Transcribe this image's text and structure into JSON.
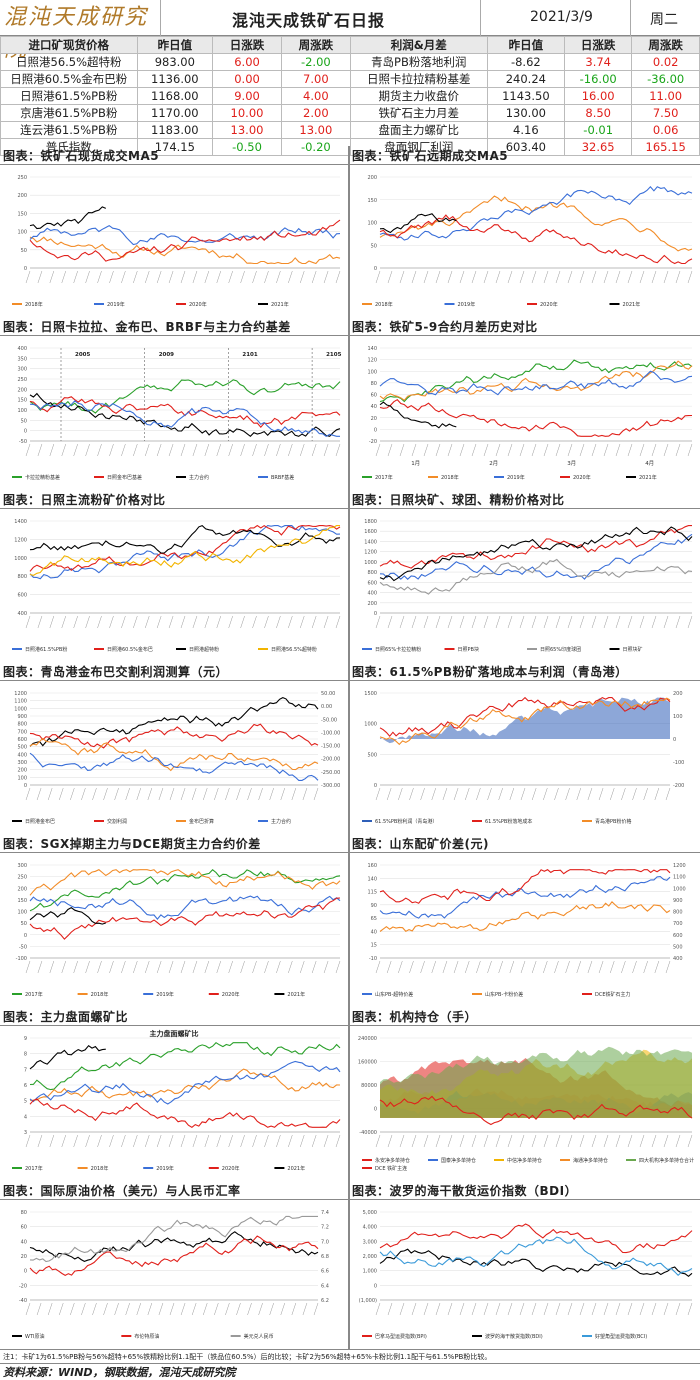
{
  "header": {
    "logo": "混沌天成研究院",
    "title": "混沌天成铁矿石日报",
    "date": "2021/3/9",
    "weekday": "周二"
  },
  "table": {
    "headers": [
      "进口矿现货价格",
      "昨日值",
      "日涨跌",
      "周涨跌",
      "利润&月差",
      "昨日值",
      "日涨跌",
      "周涨跌"
    ],
    "rows": [
      [
        "日照港56.5%超特粉",
        "983.00",
        "6.00",
        "-2.00",
        "青岛PB粉落地利润",
        "-8.62",
        "3.74",
        "0.02"
      ],
      [
        "日照港60.5%金布巴粉",
        "1136.00",
        "0.00",
        "7.00",
        "日照卡拉拉精粉基差",
        "240.24",
        "-16.00",
        "-36.00"
      ],
      [
        "日照港61.5%PB粉",
        "1168.00",
        "9.00",
        "4.00",
        "期货主力收盘价",
        "1143.50",
        "16.00",
        "11.00"
      ],
      [
        "京唐港61.5%PB粉",
        "1170.00",
        "10.00",
        "2.00",
        "铁矿石主力月差",
        "130.00",
        "8.50",
        "7.50"
      ],
      [
        "连云港61.5%PB粉",
        "1183.00",
        "13.00",
        "13.00",
        "盘面主力螺矿比",
        "4.16",
        "-0.01",
        "0.06"
      ],
      [
        "普氏指数",
        "174.15",
        "-0.50",
        "-0.20",
        "盘面钢厂利润",
        "603.40",
        "32.65",
        "165.15"
      ]
    ]
  },
  "sections": [
    "图表：铁矿石现货成交MA5",
    "图表：铁矿石远期成交MA5",
    "图表：日照卡拉拉、金布巴、BRBF与主力合约基差",
    "图表：铁矿5-9合约月差历史对比",
    "图表：日照主流粉矿价格对比",
    "图表：日照块矿、球团、精粉价格对比",
    "图表：青岛港金布巴交割利润测算（元）",
    "图表：61.5%PB粉矿落地成本与利润（青岛港）",
    "图表：SGX掉期主力与DCE期货主力合约价差",
    "图表：山东配矿价差(元)",
    "图表：主力盘面螺矿比",
    "图表：机构持仓（手）",
    "图表：国际原油价格（美元）与人民币汇率",
    "图表：波罗的海干散货运价指数（BDI）"
  ],
  "charts": [
    {
      "type": "line",
      "ylim": [
        0,
        250
      ],
      "yticks": [
        "0",
        "50",
        "100",
        "150",
        "200",
        "250"
      ],
      "series": [
        {
          "name": "2018年",
          "color": "#f28c28"
        },
        {
          "name": "2019年",
          "color": "#3a6fd8"
        },
        {
          "name": "2020年",
          "color": "#e0201b"
        },
        {
          "name": "2021年",
          "color": "#000000"
        }
      ]
    },
    {
      "type": "line",
      "ylim": [
        0,
        200
      ],
      "yticks": [
        "0",
        "50",
        "100",
        "150",
        "200"
      ],
      "series": [
        {
          "name": "2018年",
          "color": "#f28c28"
        },
        {
          "name": "2019年",
          "color": "#3a6fd8"
        },
        {
          "name": "2020年",
          "color": "#e0201b"
        },
        {
          "name": "2021年",
          "color": "#000000"
        }
      ]
    },
    {
      "type": "line",
      "ylim": [
        -50,
        400
      ],
      "yticks": [
        "-50",
        "0",
        "50",
        "100",
        "150",
        "200",
        "250",
        "300",
        "350",
        "400"
      ],
      "annotations": [
        "2005",
        "2009",
        "2101",
        "2105"
      ],
      "series": [
        {
          "name": "卡拉拉精粉基差",
          "color": "#2aa02a"
        },
        {
          "name": "日照金布巴基差",
          "color": "#e0201b"
        },
        {
          "name": "主力合约",
          "color": "#000000"
        },
        {
          "name": "BRBF基差",
          "color": "#3a6fd8"
        }
      ]
    },
    {
      "type": "line",
      "ylim": [
        -20,
        140
      ],
      "yticks": [
        "-20",
        "0",
        "20",
        "40",
        "60",
        "80",
        "100",
        "120",
        "140"
      ],
      "months": [
        "1月",
        "2月",
        "3月",
        "4月"
      ],
      "series": [
        {
          "name": "2017年",
          "color": "#2aa02a"
        },
        {
          "name": "2018年",
          "color": "#f28c28"
        },
        {
          "name": "2019年",
          "color": "#3a6fd8"
        },
        {
          "name": "2020年",
          "color": "#e0201b"
        },
        {
          "name": "2021年",
          "color": "#000000"
        }
      ]
    },
    {
      "type": "line",
      "ylim": [
        400,
        1400
      ],
      "yticks": [
        "400",
        "600",
        "800",
        "1000",
        "1200",
        "1400"
      ],
      "series": [
        {
          "name": "日照港61.5%PB粉",
          "color": "#3a6fd8"
        },
        {
          "name": "日照港60.5%金布巴",
          "color": "#e0201b"
        },
        {
          "name": "日照港超特粉",
          "color": "#000000"
        },
        {
          "name": "日照港56.5%超特粉",
          "color": "#f2b400"
        }
      ]
    },
    {
      "type": "line",
      "ylim": [
        0,
        1800
      ],
      "yticks": [
        "0",
        "200",
        "400",
        "600",
        "800",
        "1000",
        "1200",
        "1400",
        "1600",
        "1800"
      ],
      "series": [
        {
          "name": "日照65%卡拉拉精粉",
          "color": "#3a6fd8"
        },
        {
          "name": "日照PB块",
          "color": "#e0201b"
        },
        {
          "name": "日照65%印度球团",
          "color": "#999999"
        },
        {
          "name": "日照块矿",
          "color": "#000000"
        }
      ]
    },
    {
      "type": "line",
      "ylim": [
        0,
        1200
      ],
      "yticks": [
        "0",
        "100",
        "200",
        "300",
        "400",
        "500",
        "600",
        "700",
        "800",
        "900",
        "1000",
        "1100",
        "1200"
      ],
      "y2ticks": [
        "50.00",
        "0.00",
        "-50.00",
        "-100.00",
        "-150.00",
        "-200.00",
        "-250.00",
        "-300.00"
      ],
      "series": [
        {
          "name": "日照港金布巴",
          "color": "#000000"
        },
        {
          "name": "交割利润",
          "color": "#e0201b"
        },
        {
          "name": "金布巴折算",
          "color": "#f28c28"
        },
        {
          "name": "主力合约",
          "color": "#3a6fd8"
        }
      ]
    },
    {
      "type": "area",
      "ylim": [
        0,
        1600
      ],
      "yticks": [
        "0",
        "500",
        "1000",
        "1500"
      ],
      "y2ticks": [
        "200",
        "100",
        "0",
        "-100",
        "-200"
      ],
      "series": [
        {
          "name": "61.5%PB粉利润（青岛港）",
          "color": "#2f5fb8"
        },
        {
          "name": "61.5%PB粉落地成本",
          "color": "#e0201b"
        },
        {
          "name": "青岛港PB粉价格",
          "color": "#f28c28"
        }
      ]
    },
    {
      "type": "line",
      "ylim": [
        -100,
        300
      ],
      "yticks": [
        "-100",
        "-50",
        "0",
        "50",
        "100",
        "150",
        "200",
        "250",
        "300"
      ],
      "series": [
        {
          "name": "2017年",
          "color": "#2aa02a"
        },
        {
          "name": "2018年",
          "color": "#f28c28"
        },
        {
          "name": "2019年",
          "color": "#3a6fd8"
        },
        {
          "name": "2020年",
          "color": "#e0201b"
        },
        {
          "name": "2021年",
          "color": "#000000"
        }
      ]
    },
    {
      "type": "line",
      "ylim": [
        -10,
        160
      ],
      "yticks": [
        "-10",
        "15",
        "40",
        "65",
        "90",
        "115",
        "140",
        "160"
      ],
      "y2ticks": [
        "1200",
        "1100",
        "1000",
        "900",
        "800",
        "700",
        "600",
        "500",
        "400"
      ],
      "series": [
        {
          "name": "山东PB-超特价差",
          "color": "#3a6fd8"
        },
        {
          "name": "山东PB-卡粉价差",
          "color": "#f28c28"
        },
        {
          "name": "DCE铁矿石主力",
          "color": "#e0201b"
        }
      ]
    },
    {
      "type": "line",
      "title": "主力盘面螺矿比",
      "ylim": [
        3,
        9
      ],
      "yticks": [
        "3",
        "4",
        "5",
        "6",
        "7",
        "8",
        "9"
      ],
      "series": [
        {
          "name": "2017年",
          "color": "#2aa02a"
        },
        {
          "name": "2018年",
          "color": "#f28c28"
        },
        {
          "name": "2019年",
          "color": "#3a6fd8"
        },
        {
          "name": "2020年",
          "color": "#e0201b"
        },
        {
          "name": "2021年",
          "color": "#000000"
        }
      ]
    },
    {
      "type": "area",
      "ylim": [
        -40000,
        240000
      ],
      "yticks": [
        "-40000",
        "0",
        "80000",
        "160000",
        "240000"
      ],
      "series": [
        {
          "name": "永安净多单持仓",
          "color": "#e0201b"
        },
        {
          "name": "国泰净多单持仓",
          "color": "#3a6fd8"
        },
        {
          "name": "中信净多单持仓",
          "color": "#f2b400"
        },
        {
          "name": "海通净多单持仓",
          "color": "#f28c28"
        },
        {
          "name": "四大机构净多单持仓合计",
          "color": "#6aa84f"
        },
        {
          "name": "DCE 铁矿主连",
          "color": "#e0201b"
        }
      ]
    },
    {
      "type": "line",
      "ylim": [
        -40,
        80
      ],
      "yticks": [
        "-40",
        "-20",
        "0",
        "20",
        "40",
        "60",
        "80"
      ],
      "y2ticks": [
        "7.4",
        "7.2",
        "7.0",
        "6.8",
        "6.6",
        "6.4",
        "6.2"
      ],
      "series": [
        {
          "name": "WTI原油",
          "color": "#000000"
        },
        {
          "name": "布伦特原油",
          "color": "#e0201b"
        },
        {
          "name": "美元兑人民币",
          "color": "#999999"
        }
      ]
    },
    {
      "type": "line",
      "ylim": [
        -1000,
        5000
      ],
      "yticks": [
        "(1,000)",
        "0",
        "1,000",
        "2,000",
        "3,000",
        "4,000",
        "5,000"
      ],
      "series": [
        {
          "name": "巴拿马型运费指数(BPI)",
          "color": "#e0201b"
        },
        {
          "name": "波罗的海干散货指数(BDI)",
          "color": "#000000"
        },
        {
          "name": "好望角型运费指数(BCI)",
          "color": "#3a9ad9"
        }
      ]
    }
  ],
  "footnote": "注1：卡矿1为61.5%PB粉与56%超特+65%铁精粉比例1.1配干（铁品位60.5%）后的比较；卡矿2为56%超特+65%卡粉比例1.1配干与61.5%PB粉比较。",
  "source": "资料来源：WIND，钢联数据，混沌天成研究院"
}
